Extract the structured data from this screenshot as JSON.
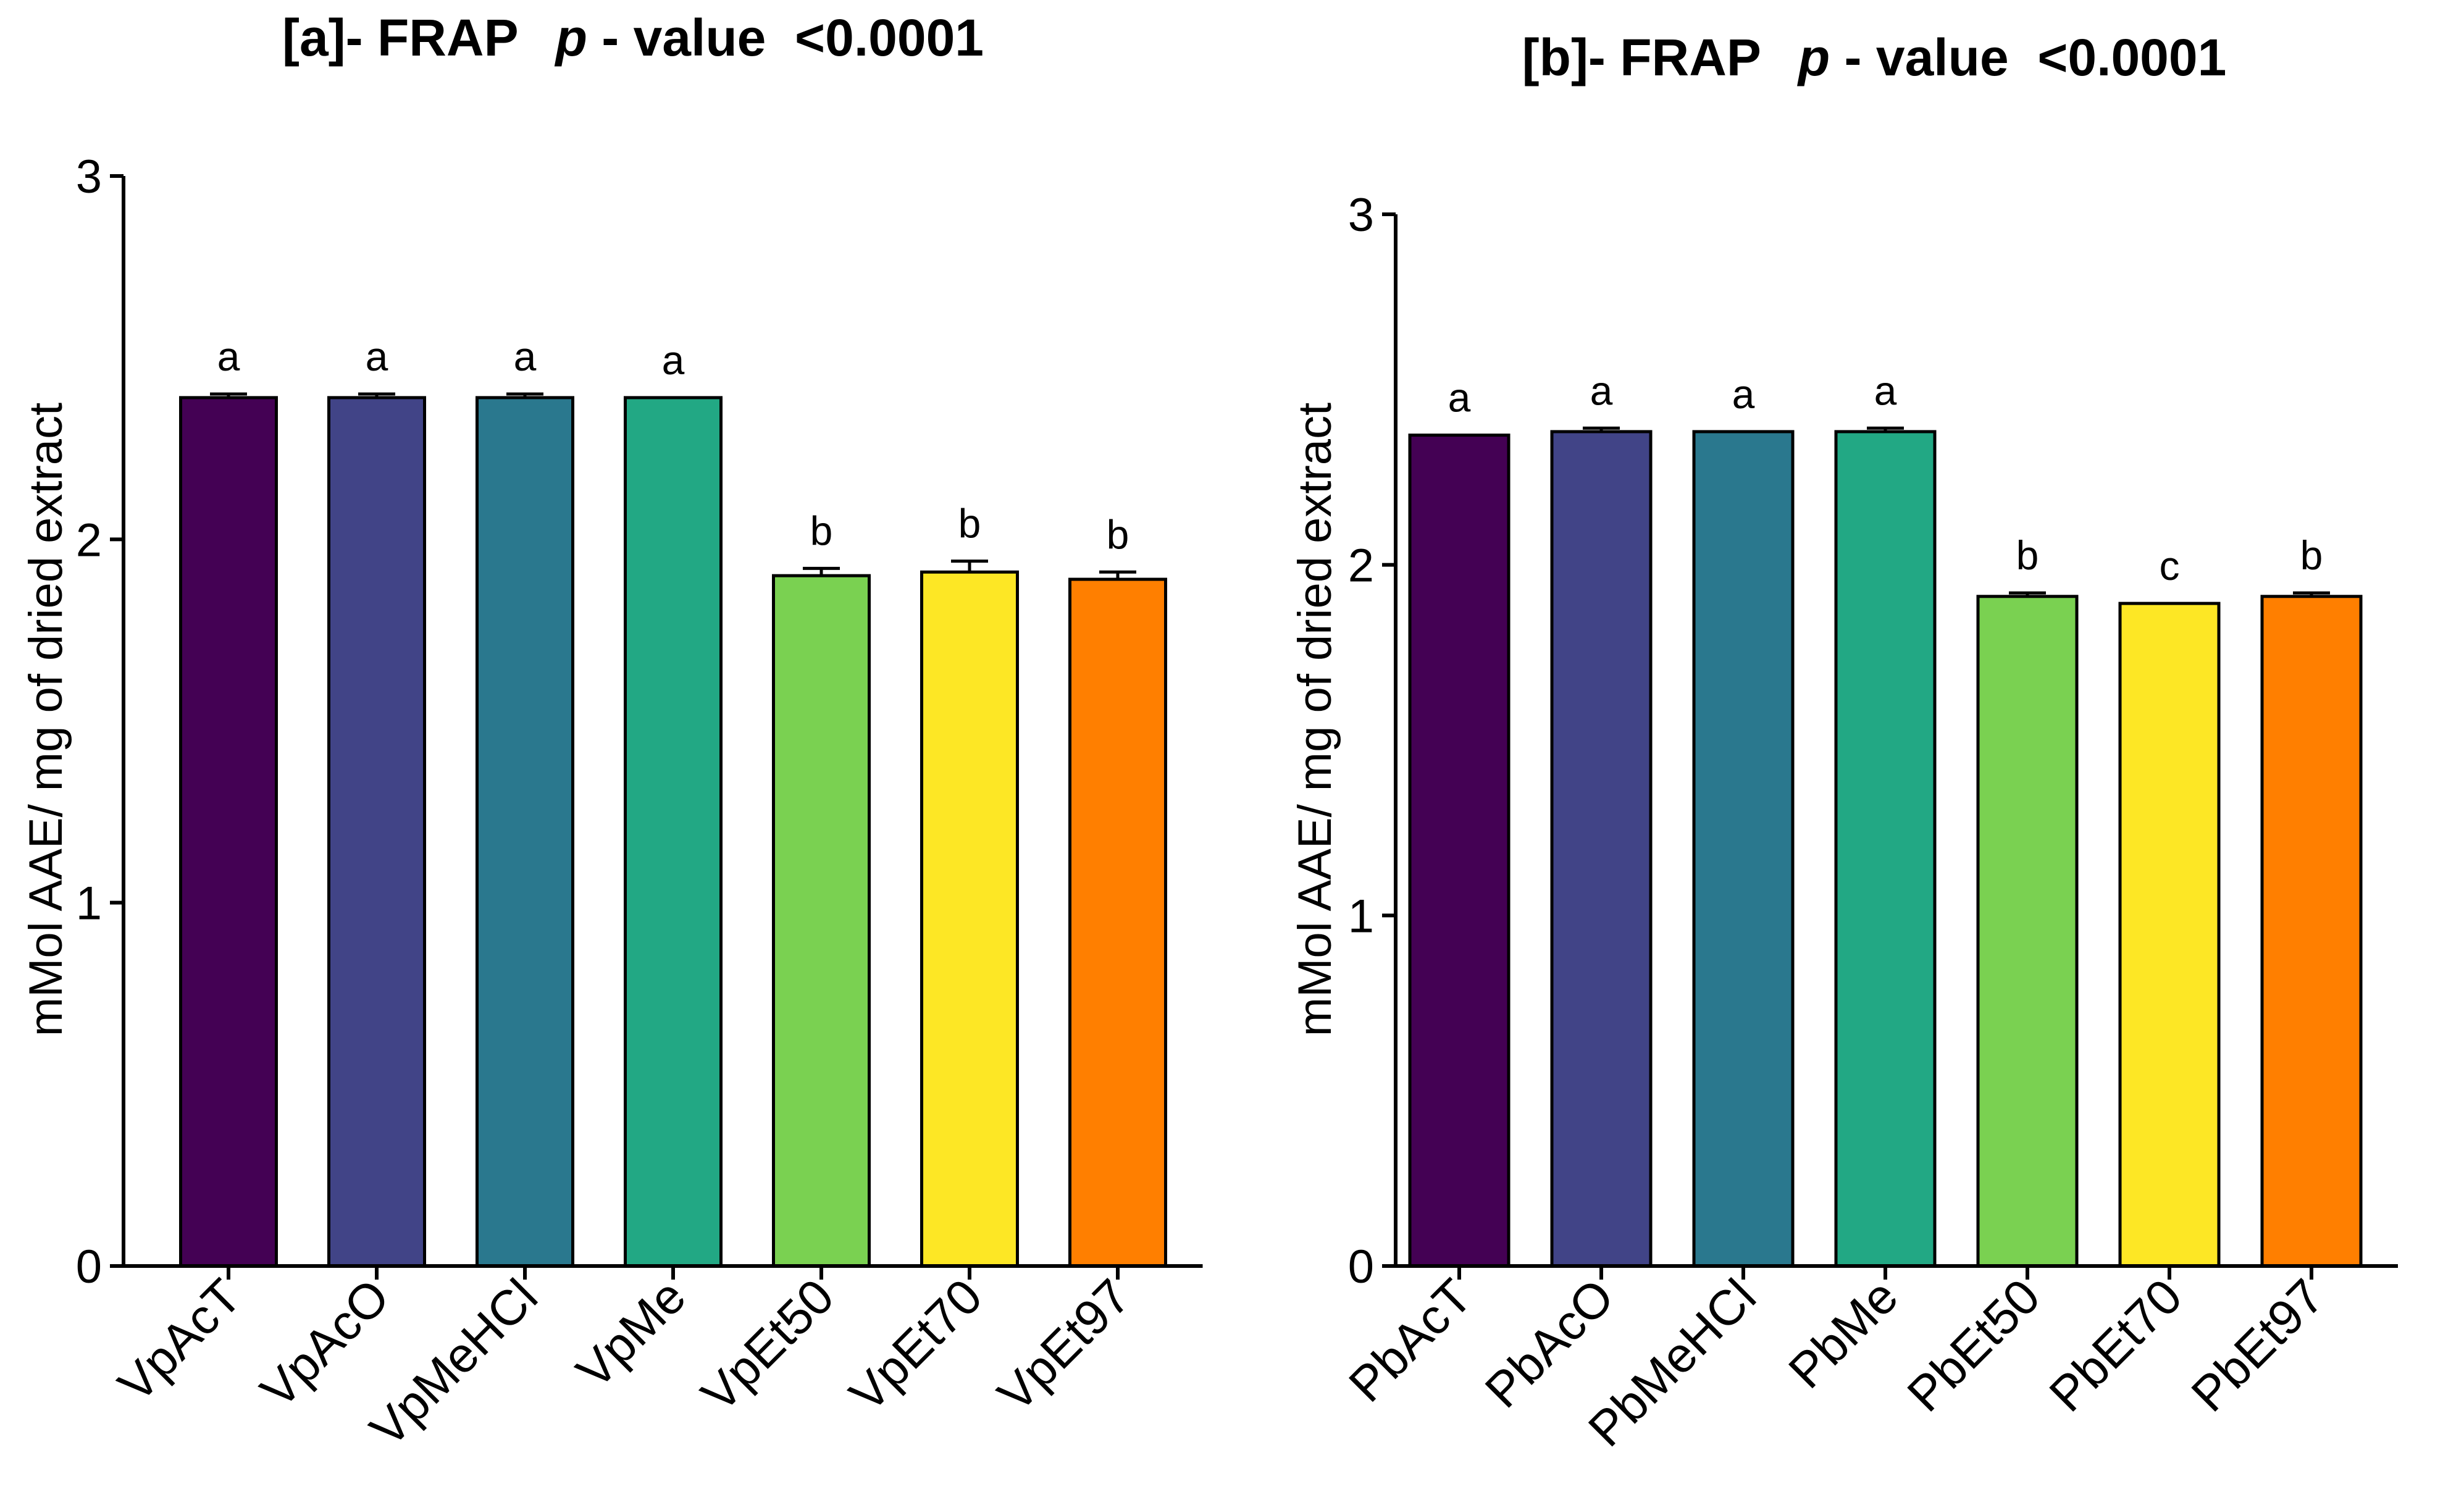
{
  "chart_data": [
    {
      "type": "bar",
      "panel": "[a]",
      "title": {
        "prefix": "[a]- FRAP",
        "p": "p",
        "rest": " - value  <0.0001"
      },
      "ylabel": "mMol AAE/ mg of dried extract",
      "ylim": [
        0,
        3
      ],
      "yticks": [
        "0",
        "1",
        "2",
        "3"
      ],
      "categories": [
        "VpAcT",
        "VpAcO",
        "VpMeHCl",
        "VpMe",
        "VpEt50",
        "VpEt70",
        "VpEt97"
      ],
      "values": [
        2.39,
        2.39,
        2.39,
        2.39,
        1.9,
        1.91,
        1.89
      ],
      "errors": [
        0.01,
        0.01,
        0.01,
        0.0,
        0.02,
        0.03,
        0.02
      ],
      "letters": [
        "a",
        "a",
        "a",
        "a",
        "b",
        "b",
        "b"
      ],
      "colors": [
        "#440154",
        "#414487",
        "#2a788e",
        "#22a884",
        "#7ad151",
        "#fde725",
        "#ff7f00"
      ]
    },
    {
      "type": "bar",
      "panel": "[b]",
      "title": {
        "prefix": "[b]- FRAP",
        "p": "p",
        "rest": " - value  <0.0001"
      },
      "ylabel": "mMol AAE/ mg of dried extract",
      "ylim": [
        0,
        3
      ],
      "yticks": [
        "0",
        "1",
        "2",
        "3"
      ],
      "categories": [
        "PbAcT",
        "PbAcO",
        "PbMeHCl",
        "PbMe",
        "PbEt50",
        "PbEt70",
        "PbEt97"
      ],
      "values": [
        2.37,
        2.38,
        2.38,
        2.38,
        1.91,
        1.89,
        1.91
      ],
      "errors": [
        0.0,
        0.01,
        0.0,
        0.01,
        0.01,
        0.0,
        0.01
      ],
      "letters": [
        "a",
        "a",
        "a",
        "a",
        "b",
        "c",
        "b"
      ],
      "colors": [
        "#440154",
        "#414487",
        "#2a788e",
        "#22a884",
        "#7ad151",
        "#fde725",
        "#ff7f00"
      ]
    }
  ]
}
